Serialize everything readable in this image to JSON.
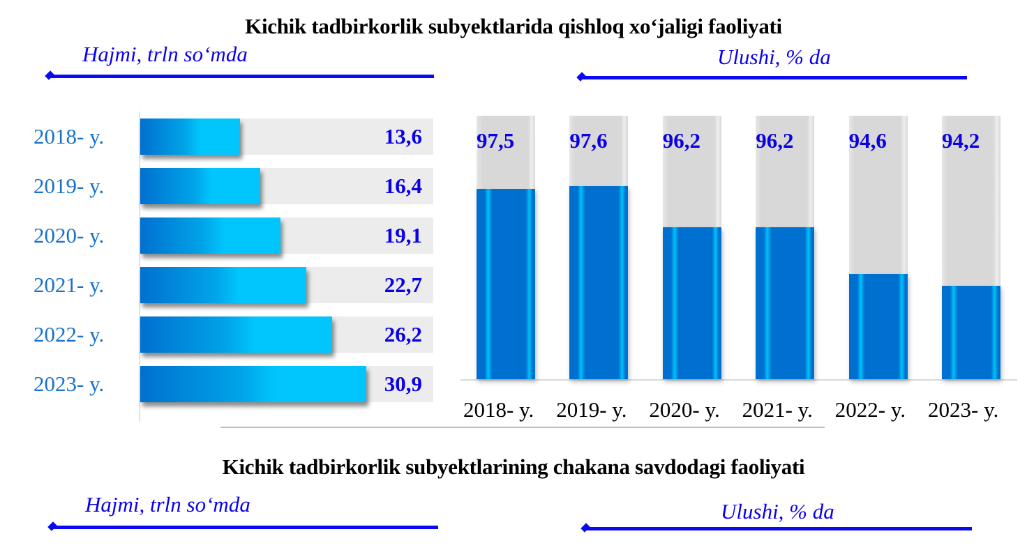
{
  "top_section": {
    "title": "Kichik tadbirkorlik subyektlarida qishloq xo‘jaligi faoliyati",
    "left_subtitle": "Hajmi, trln so‘mda",
    "right_subtitle": "Ulushi, % da"
  },
  "bottom_section": {
    "title": "Kichik tadbirkorlik subyektlarining chakana savdodagi faoliyati",
    "left_subtitle": "Hajmi, trln so‘mda",
    "right_subtitle": "Ulushi, % da"
  },
  "colors": {
    "accent_blue": "#0a0af0",
    "label_blue": "#1772c9",
    "value_blue": "#0a00e6",
    "bar_dark": "#0070d0",
    "bar_light": "#00c6fd",
    "track_gray": "#ececec"
  },
  "chart_data": [
    {
      "type": "bar",
      "orientation": "horizontal",
      "title": "Hajmi, trln so‘mda",
      "categories": [
        "2018- y.",
        "2019- y.",
        "2020- y.",
        "2021- y.",
        "2022- y.",
        "2023- y."
      ],
      "values": [
        13.6,
        16.4,
        19.1,
        22.7,
        26.2,
        30.9
      ],
      "value_labels": [
        "13,6",
        "16,4",
        "19,1",
        "22,7",
        "26,2",
        "30,9"
      ],
      "xlim": [
        0,
        40
      ],
      "grid": false,
      "legend": "none"
    },
    {
      "type": "bar",
      "orientation": "vertical",
      "title": "Ulushi, % da",
      "categories": [
        "2018- y.",
        "2019- y.",
        "2020- y.",
        "2021- y.",
        "2022- y.",
        "2023- y."
      ],
      "values": [
        97.5,
        97.6,
        96.2,
        96.2,
        94.6,
        94.2
      ],
      "value_labels": [
        "97,5",
        "97,6",
        "96,2",
        "96,2",
        "94,6",
        "94,2"
      ],
      "ylim": [
        91,
        100
      ],
      "grid": false,
      "legend": "none"
    }
  ]
}
